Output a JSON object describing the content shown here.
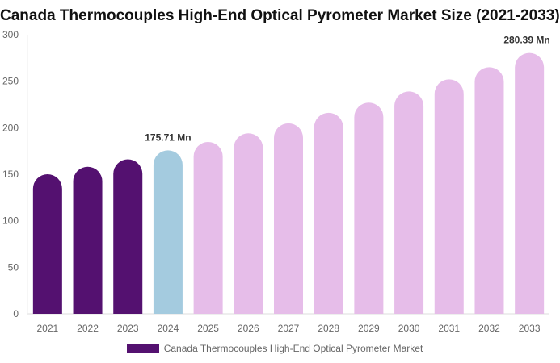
{
  "chart_data": {
    "type": "bar",
    "title": "Canada Thermocouples High-End Optical Pyrometer Market Size (2021-2033)",
    "categories": [
      "2021",
      "2022",
      "2023",
      "2024",
      "2025",
      "2026",
      "2027",
      "2028",
      "2029",
      "2030",
      "2031",
      "2032",
      "2033"
    ],
    "series": [
      {
        "name": "Canada Thermocouples High-End Optical Pyrometer Market",
        "values": [
          150,
          158,
          166,
          175.71,
          184.7,
          194,
          204.7,
          216,
          227,
          239,
          252,
          265,
          280.39
        ]
      }
    ],
    "data_labels": [
      {
        "index": 3,
        "text": "175.71 Mn"
      },
      {
        "index": 12,
        "text": "280.39 Mn"
      }
    ],
    "yticks": [
      0,
      50,
      100,
      150,
      200,
      250,
      300
    ],
    "ylim": [
      0,
      300
    ],
    "grid": false,
    "legend": "bottom",
    "colors": {
      "historical": "#541170",
      "current": "#a4cbdf",
      "forecast": "#e6bde9"
    }
  }
}
